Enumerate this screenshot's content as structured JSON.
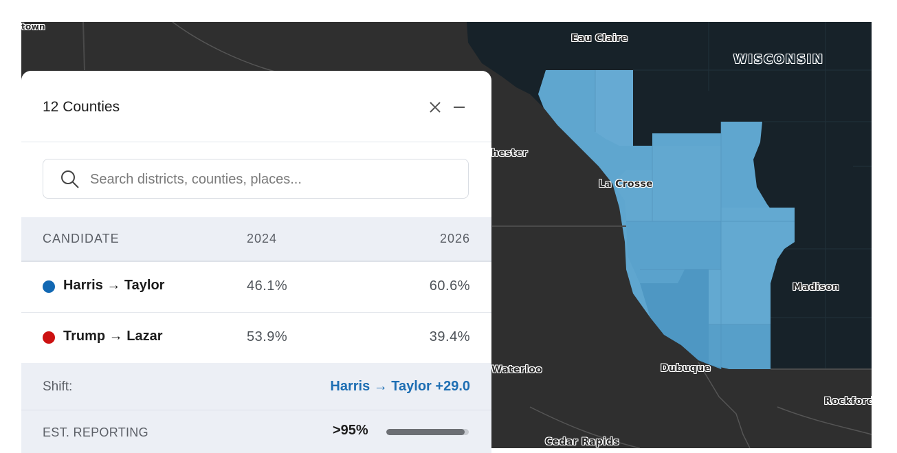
{
  "map": {
    "labels": {
      "town": "town",
      "eau_claire": "Eau Claire",
      "wisconsin": "WISCONSIN",
      "chester": "hester",
      "la_crosse": "La Crosse",
      "madison": "Madison",
      "waterloo": "Waterloo",
      "dubuque": "Dubuque",
      "rockford": "Rockford",
      "cedar_rapids": "Cedar Rapids"
    },
    "colors": {
      "background": "#2f2f2f",
      "wisconsin_fill": "#172229",
      "highlight_fill": "#5fa6cf",
      "highlight_dark": "#4e97c3"
    }
  },
  "panel": {
    "title": "12 Counties",
    "close_icon": "close-icon",
    "minimize_icon": "minimize-icon",
    "search": {
      "placeholder": "Search districts, counties, places...",
      "value": "",
      "icon": "search-icon"
    },
    "table": {
      "headers": [
        "CANDIDATE",
        "2024",
        "2026"
      ],
      "rows": [
        {
          "name": "Harris → Taylor",
          "color": "#1268b3",
          "v2024": "46.1%",
          "v2026": "60.6%"
        },
        {
          "name": "Trump → Lazar",
          "color": "#cc1111",
          "v2024": "53.9%",
          "v2026": "39.4%"
        }
      ]
    },
    "shift": {
      "label": "Shift:",
      "value": "Harris → Taylor +29.0",
      "color": "#1d6eb3"
    },
    "reporting": {
      "label": "EST. REPORTING",
      "value": ">95%",
      "fraction": 0.95
    }
  }
}
